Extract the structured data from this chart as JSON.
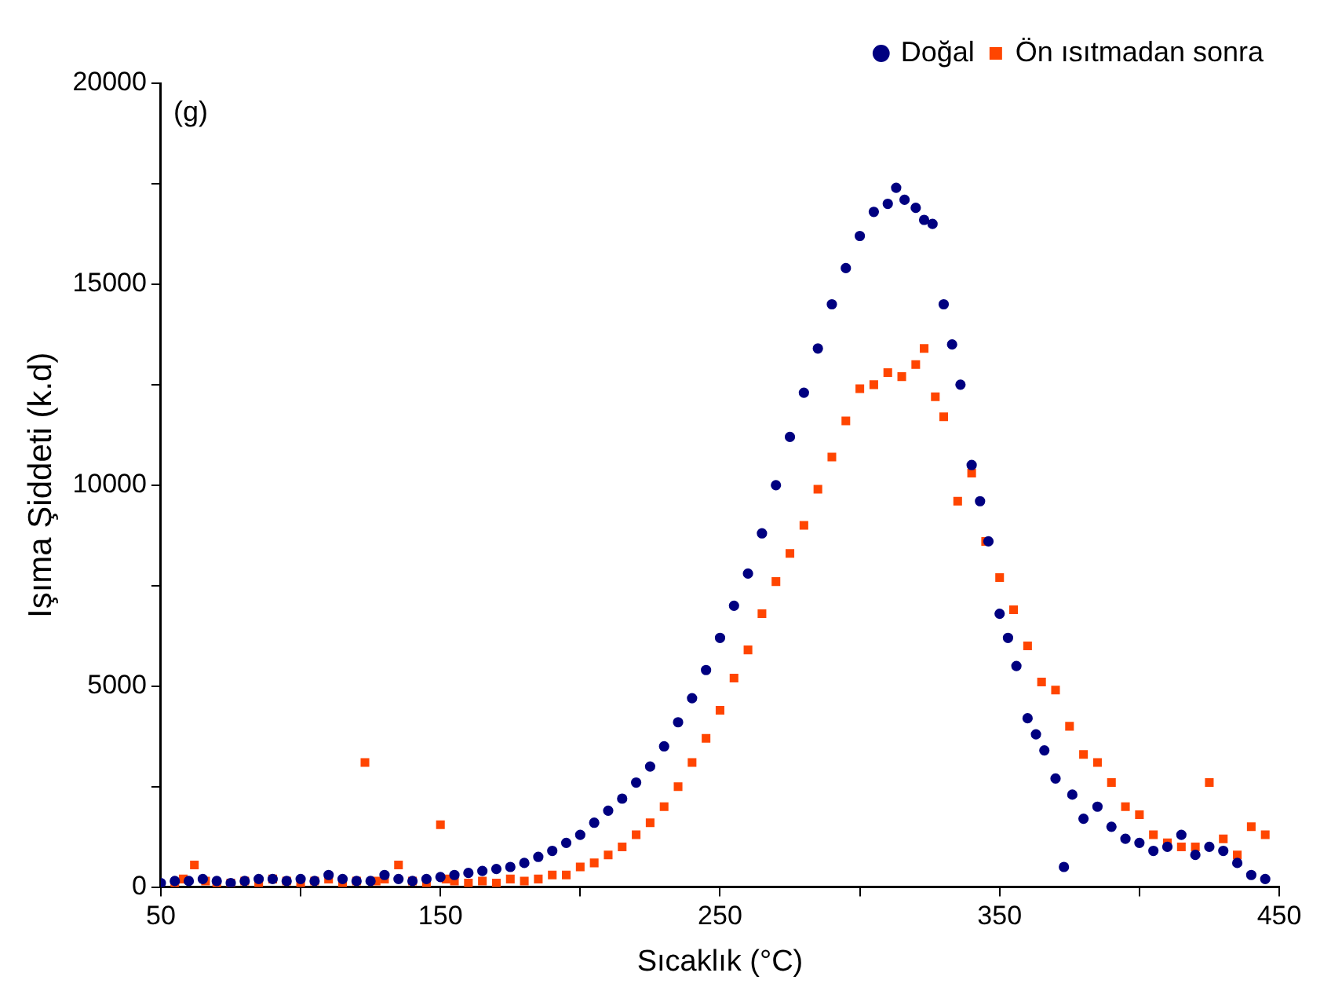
{
  "chart_data": {
    "type": "scatter",
    "xlabel": "Sıcaklık (°C)",
    "ylabel": "Işıma Şiddeti (k.d)",
    "annotations": [
      "(g)"
    ],
    "xlim": [
      50,
      450
    ],
    "xticks": [
      50,
      {
        "value": 100,
        "label": null
      },
      150,
      {
        "value": 200,
        "label": null
      },
      250,
      {
        "value": 300,
        "label": null
      },
      350,
      {
        "value": 400,
        "label": null
      },
      450
    ],
    "ylim": [
      0,
      20000
    ],
    "yticks": [
      0,
      {
        "value": 2500,
        "label": null
      },
      5000,
      {
        "value": 7500,
        "label": null
      },
      10000,
      {
        "value": 12500,
        "label": null
      },
      15000,
      {
        "value": 17500,
        "label": null
      },
      20000
    ],
    "grid": false,
    "legend": "top right",
    "series": [
      {
        "name": "Doğal",
        "color": "#000080",
        "marker": "circle",
        "x": [
          50,
          55,
          60,
          65,
          70,
          75,
          80,
          85,
          90,
          95,
          100,
          105,
          110,
          115,
          120,
          125,
          130,
          135,
          140,
          145,
          150,
          155,
          160,
          165,
          170,
          175,
          180,
          185,
          190,
          195,
          200,
          205,
          210,
          215,
          220,
          225,
          230,
          235,
          240,
          245,
          250,
          255,
          260,
          265,
          270,
          275,
          280,
          285,
          290,
          295,
          300,
          305,
          310,
          313,
          316,
          320,
          323,
          326,
          330,
          333,
          336,
          340,
          343,
          346,
          350,
          353,
          356,
          360,
          363,
          366,
          370,
          373,
          376,
          380,
          385,
          390,
          395,
          400,
          405,
          410,
          415,
          420,
          425,
          430,
          435,
          440,
          445
        ],
        "values": [
          100,
          150,
          150,
          200,
          150,
          100,
          150,
          200,
          200,
          150,
          200,
          150,
          300,
          200,
          150,
          150,
          300,
          200,
          150,
          200,
          250,
          300,
          350,
          400,
          450,
          500,
          600,
          750,
          900,
          1100,
          1300,
          1600,
          1900,
          2200,
          2600,
          3000,
          3500,
          4100,
          4700,
          5400,
          6200,
          7000,
          7800,
          8800,
          10000,
          11200,
          12300,
          13400,
          14500,
          15400,
          16200,
          16800,
          17000,
          17400,
          17100,
          16900,
          16600,
          16500,
          14500,
          13500,
          12500,
          10500,
          9600,
          8600,
          6800,
          6200,
          5500,
          4200,
          3800,
          3400,
          2700,
          500,
          2300,
          1700,
          2000,
          1500,
          1200,
          1100,
          900,
          1000,
          1300,
          800,
          1000,
          900,
          600,
          300,
          200
        ]
      },
      {
        "name": "Ön ısıtmadan sonra",
        "color": "#ff4500",
        "marker": "square",
        "x": [
          55,
          58,
          62,
          66,
          70,
          75,
          80,
          85,
          90,
          95,
          100,
          105,
          110,
          115,
          120,
          123,
          127,
          130,
          135,
          140,
          145,
          150,
          152,
          155,
          160,
          165,
          170,
          175,
          180,
          185,
          190,
          195,
          200,
          205,
          210,
          215,
          220,
          225,
          230,
          235,
          240,
          245,
          250,
          255,
          260,
          265,
          270,
          275,
          280,
          285,
          290,
          295,
          300,
          305,
          310,
          315,
          320,
          323,
          327,
          330,
          335,
          340,
          345,
          350,
          355,
          360,
          365,
          370,
          375,
          380,
          385,
          390,
          395,
          400,
          405,
          410,
          415,
          420,
          425,
          430,
          435,
          440,
          445
        ],
        "values": [
          100,
          200,
          550,
          150,
          100,
          100,
          150,
          100,
          200,
          150,
          100,
          150,
          200,
          100,
          150,
          3100,
          150,
          200,
          550,
          150,
          100,
          1550,
          200,
          150,
          100,
          150,
          100,
          200,
          150,
          200,
          300,
          300,
          500,
          600,
          800,
          1000,
          1300,
          1600,
          2000,
          2500,
          3100,
          3700,
          4400,
          5200,
          5900,
          6800,
          7600,
          8300,
          9000,
          9900,
          10700,
          11600,
          12400,
          12500,
          12800,
          12700,
          13000,
          13400,
          12200,
          11700,
          9600,
          10300,
          8600,
          7700,
          6900,
          6000,
          5100,
          4900,
          4000,
          3300,
          3100,
          2600,
          2000,
          1800,
          1300,
          1100,
          1000,
          1000,
          2600,
          1200,
          800,
          1500,
          1300
        ]
      }
    ]
  }
}
